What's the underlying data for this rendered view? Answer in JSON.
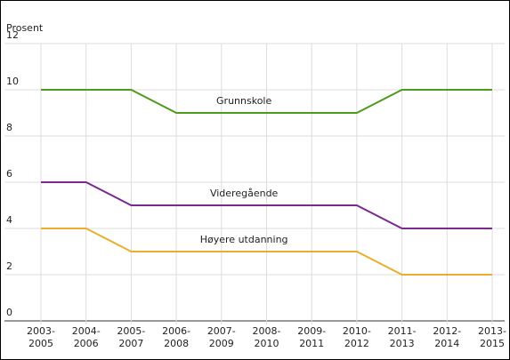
{
  "chart_data": {
    "type": "line",
    "y_label": "Prosent",
    "categories": [
      "2003-\n2005",
      "2004-\n2006",
      "2005-\n2007",
      "2006-\n2008",
      "2007-\n2009",
      "2008-\n2010",
      "2009-\n2011",
      "2010-\n2012",
      "2011-\n2013",
      "2012-\n2014",
      "2013-\n2015"
    ],
    "series": [
      {
        "name": "Grunnskole",
        "color": "#4e9a1c",
        "values": [
          10,
          10,
          10,
          9,
          9,
          9,
          9,
          9,
          10,
          10,
          10
        ]
      },
      {
        "name": "Videregående",
        "color": "#7a2a8c",
        "values": [
          6,
          6,
          5,
          5,
          5,
          5,
          5,
          5,
          4,
          4,
          4
        ]
      },
      {
        "name": "Høyere utdanning",
        "color": "#e8b02a",
        "values": [
          4,
          4,
          3,
          3,
          3,
          3,
          3,
          3,
          2,
          2,
          2
        ]
      }
    ],
    "ylim": [
      0,
      12
    ],
    "yticks": [
      0,
      2,
      4,
      6,
      8,
      10,
      12
    ],
    "grid": true
  }
}
